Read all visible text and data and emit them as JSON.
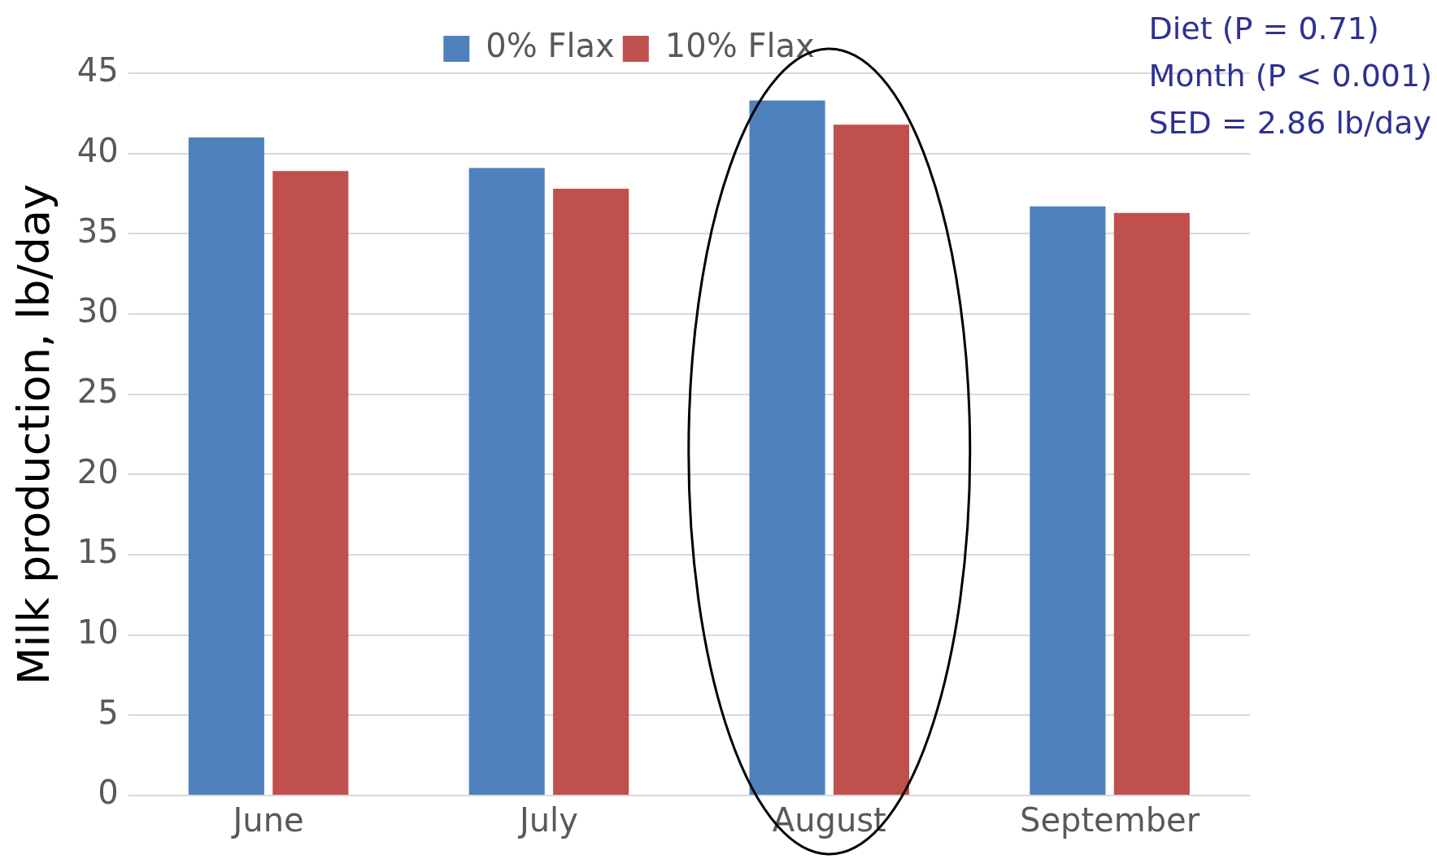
{
  "chart_data": {
    "type": "bar",
    "categories": [
      "June",
      "July",
      "August",
      "September"
    ],
    "series": [
      {
        "name": "0% Flax",
        "color": "#4f81bd",
        "values": [
          41,
          39.1,
          43.3,
          36.7
        ]
      },
      {
        "name": "10% Flax",
        "color": "#c0504d",
        "values": [
          38.9,
          37.8,
          41.8,
          36.3
        ]
      }
    ],
    "ylabel": "Milk production, lb/day",
    "ylim": [
      0,
      45
    ],
    "yticks": [
      0,
      5,
      10,
      15,
      20,
      25,
      30,
      35,
      40,
      45
    ],
    "grid": "y",
    "legend": "top",
    "annotations": [
      "Diet (P = 0.71)",
      "Month (P < 0.001)",
      "SED = 2.86 lb/day"
    ]
  }
}
